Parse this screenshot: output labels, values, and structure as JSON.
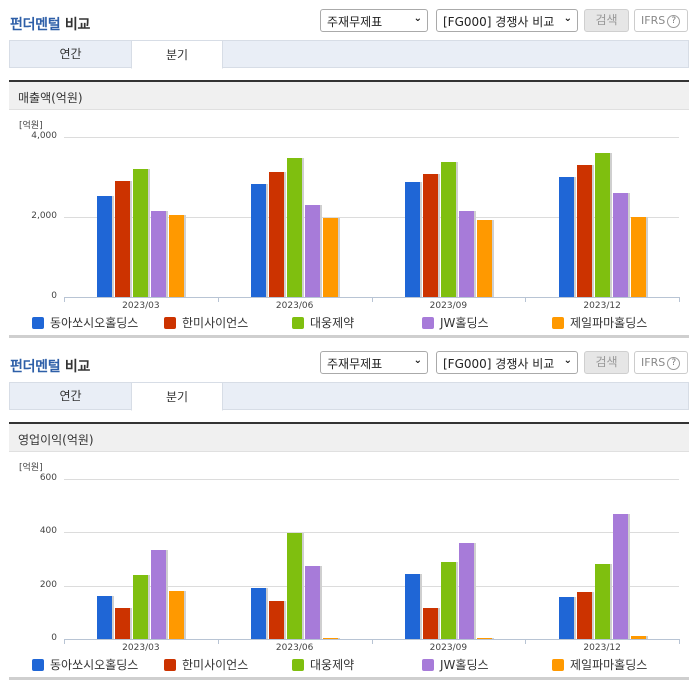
{
  "colors": {
    "accent": "#2e5fa8",
    "series": [
      "#1f66d6",
      "#cc3300",
      "#7fbf0f",
      "#a77bd9",
      "#ff9900"
    ]
  },
  "sections": [
    {
      "title_accent": "펀더멘털",
      "title_rest": " 비교",
      "select_statement": "주재무제표",
      "select_compare": "[FG000] 경쟁사 비교",
      "search_label": "검색",
      "ifrs_label": "IFRS",
      "help_glyph": "?",
      "tabs": [
        {
          "label": "연간",
          "active": false
        },
        {
          "label": "분기",
          "active": true
        }
      ],
      "metric_label": "매출액(억원)",
      "unit_label": "[억원]"
    },
    {
      "title_accent": "펀더멘털",
      "title_rest": " 비교",
      "select_statement": "주재무제표",
      "select_compare": "[FG000] 경쟁사 비교",
      "search_label": "검색",
      "ifrs_label": "IFRS",
      "help_glyph": "?",
      "tabs": [
        {
          "label": "연간",
          "active": false
        },
        {
          "label": "분기",
          "active": true
        }
      ],
      "metric_label": "영업이익(억원)",
      "unit_label": "[억원]"
    }
  ],
  "chart_data": [
    {
      "type": "bar",
      "title": "매출액(억원)",
      "xlabel": "",
      "ylabel": "[억원]",
      "ylim": [
        0,
        4000
      ],
      "yticks": [
        "0",
        "2,000",
        "4,000"
      ],
      "grid": true,
      "legend_position": "bottom",
      "categories": [
        "2023/03",
        "2023/06",
        "2023/09",
        "2023/12"
      ],
      "series": [
        {
          "name": "동아쏘시오홀딩스",
          "values": [
            2525,
            2825,
            2875,
            3000
          ]
        },
        {
          "name": "한미사이언스",
          "values": [
            2900,
            3125,
            3075,
            3300
          ]
        },
        {
          "name": "대웅제약",
          "values": [
            3200,
            3475,
            3375,
            3600
          ]
        },
        {
          "name": "JW홀딩스",
          "values": [
            2150,
            2300,
            2150,
            2600
          ]
        },
        {
          "name": "제일파마홀딩스",
          "values": [
            2050,
            1975,
            1925,
            2000
          ]
        }
      ]
    },
    {
      "type": "bar",
      "title": "영업이익(억원)",
      "xlabel": "",
      "ylabel": "[억원]",
      "ylim": [
        0,
        600
      ],
      "yticks": [
        "0",
        "200",
        "400",
        "600"
      ],
      "grid": true,
      "legend_position": "bottom",
      "categories": [
        "2023/03",
        "2023/06",
        "2023/09",
        "2023/12"
      ],
      "series": [
        {
          "name": "동아쏘시오홀딩스",
          "values": [
            160,
            190,
            243,
            157
          ]
        },
        {
          "name": "한미사이언스",
          "values": [
            117,
            142,
            116,
            176
          ]
        },
        {
          "name": "대웅제약",
          "values": [
            240,
            396,
            288,
            281
          ]
        },
        {
          "name": "JW홀딩스",
          "values": [
            333,
            273,
            359,
            467
          ]
        },
        {
          "name": "제일파마홀딩스",
          "values": [
            180,
            5,
            2,
            10
          ]
        }
      ]
    }
  ]
}
